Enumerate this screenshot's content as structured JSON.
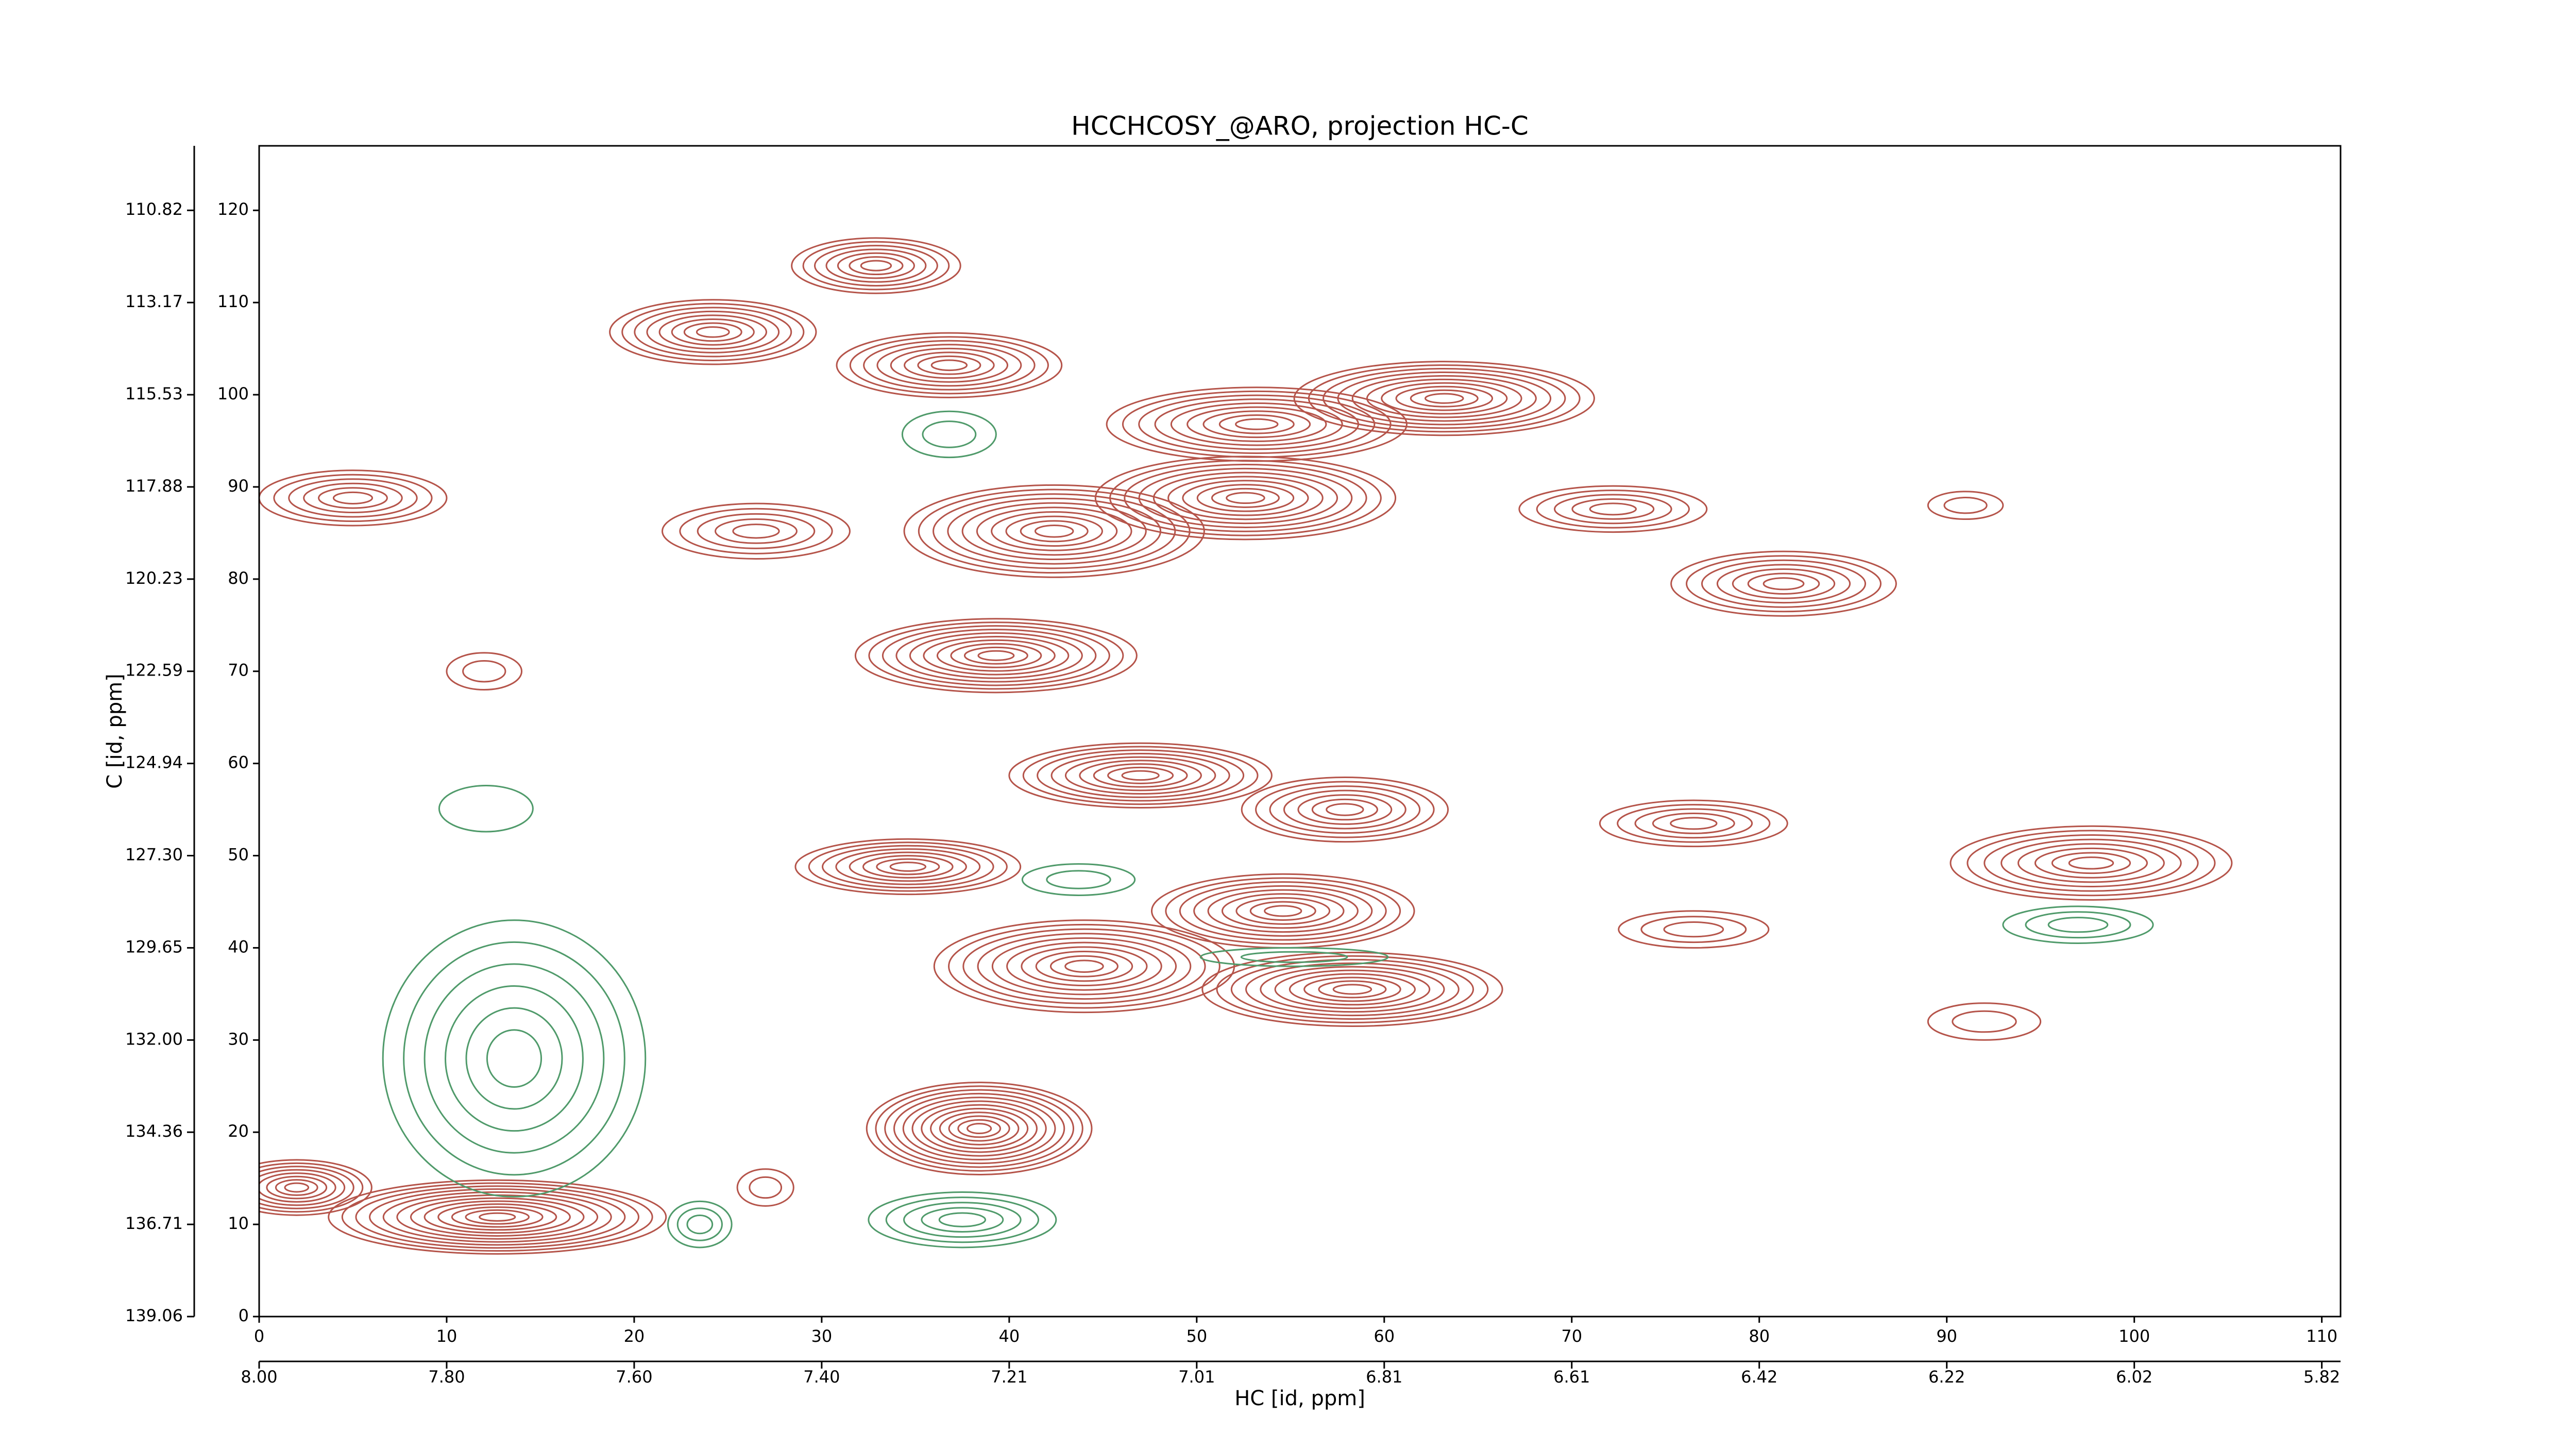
{
  "chart_data": {
    "type": "contour",
    "title": "HCCHCOSY_@ARO, projection HC-C",
    "xlabel": "HC [id, ppm]",
    "ylabel": "C [id, ppm]",
    "xlim": [
      0,
      111
    ],
    "ylim": [
      0,
      127
    ],
    "xticks": [
      0,
      10,
      20,
      30,
      40,
      50,
      60,
      70,
      80,
      90,
      100,
      110
    ],
    "yticks": [
      0,
      10,
      20,
      30,
      40,
      50,
      60,
      70,
      80,
      90,
      100,
      110,
      120
    ],
    "x2ticks": [
      {
        "value": 0,
        "label": "8.00"
      },
      {
        "value": 10,
        "label": "7.80"
      },
      {
        "value": 20,
        "label": "7.60"
      },
      {
        "value": 30,
        "label": "7.40"
      },
      {
        "value": 40,
        "label": "7.21"
      },
      {
        "value": 50,
        "label": "7.01"
      },
      {
        "value": 60,
        "label": "6.81"
      },
      {
        "value": 70,
        "label": "6.61"
      },
      {
        "value": 80,
        "label": "6.42"
      },
      {
        "value": 90,
        "label": "6.22"
      },
      {
        "value": 100,
        "label": "6.02"
      },
      {
        "value": 110,
        "label": "5.82"
      }
    ],
    "y2ticks": [
      {
        "value": 0,
        "label": "139.06"
      },
      {
        "value": 10,
        "label": "136.71"
      },
      {
        "value": 20,
        "label": "134.36"
      },
      {
        "value": 30,
        "label": "132.00"
      },
      {
        "value": 40,
        "label": "129.65"
      },
      {
        "value": 50,
        "label": "127.30"
      },
      {
        "value": 60,
        "label": "124.94"
      },
      {
        "value": 70,
        "label": "122.59"
      },
      {
        "value": 80,
        "label": "120.23"
      },
      {
        "value": 90,
        "label": "117.88"
      },
      {
        "value": 100,
        "label": "115.53"
      },
      {
        "value": 110,
        "label": "113.17"
      },
      {
        "value": 120,
        "label": "110.82"
      }
    ],
    "series": [
      {
        "color": "#b5544a",
        "peaks": [
          {
            "x": 12.7,
            "y": 10.8,
            "wx": 9,
            "wy": 4,
            "levels": 12
          },
          {
            "x": 2,
            "y": 14,
            "wx": 4,
            "wy": 3,
            "levels": 8
          },
          {
            "x": 38.4,
            "y": 20.4,
            "wx": 6,
            "wy": 5,
            "levels": 12
          },
          {
            "x": 34.6,
            "y": 48.8,
            "wx": 6,
            "wy": 3,
            "levels": 8
          },
          {
            "x": 44,
            "y": 38,
            "wx": 8,
            "wy": 5,
            "levels": 10
          },
          {
            "x": 54.6,
            "y": 44,
            "wx": 7,
            "wy": 4,
            "levels": 9
          },
          {
            "x": 58.3,
            "y": 35.5,
            "wx": 8,
            "wy": 4,
            "levels": 10
          },
          {
            "x": 47,
            "y": 58.7,
            "wx": 7,
            "wy": 3.5,
            "levels": 9
          },
          {
            "x": 57.9,
            "y": 55,
            "wx": 5.5,
            "wy": 3.5,
            "levels": 7
          },
          {
            "x": 39.3,
            "y": 71.7,
            "wx": 7.5,
            "wy": 4,
            "levels": 10
          },
          {
            "x": 42.4,
            "y": 85.2,
            "wx": 8,
            "wy": 5,
            "levels": 10
          },
          {
            "x": 52.6,
            "y": 88.8,
            "wx": 8,
            "wy": 4.5,
            "levels": 10
          },
          {
            "x": 53.2,
            "y": 96.8,
            "wx": 8,
            "wy": 4,
            "levels": 9
          },
          {
            "x": 63.2,
            "y": 99.6,
            "wx": 8,
            "wy": 4,
            "levels": 10
          },
          {
            "x": 36.8,
            "y": 103.2,
            "wx": 6,
            "wy": 3.5,
            "levels": 8
          },
          {
            "x": 24.2,
            "y": 106.8,
            "wx": 5.5,
            "wy": 3.5,
            "levels": 8
          },
          {
            "x": 32.9,
            "y": 114,
            "wx": 4.5,
            "wy": 3,
            "levels": 7
          },
          {
            "x": 5,
            "y": 88.8,
            "wx": 5,
            "wy": 3,
            "levels": 6
          },
          {
            "x": 26.5,
            "y": 85.2,
            "wx": 5,
            "wy": 3,
            "levels": 5
          },
          {
            "x": 72.2,
            "y": 87.6,
            "wx": 5,
            "wy": 2.5,
            "levels": 5
          },
          {
            "x": 81.3,
            "y": 79.5,
            "wx": 6,
            "wy": 3.5,
            "levels": 7
          },
          {
            "x": 76.5,
            "y": 53.5,
            "wx": 5,
            "wy": 2.5,
            "levels": 5
          },
          {
            "x": 97.7,
            "y": 49.2,
            "wx": 7.5,
            "wy": 4,
            "levels": 8
          },
          {
            "x": 76.5,
            "y": 42,
            "wx": 4,
            "wy": 2,
            "levels": 3
          },
          {
            "x": 12,
            "y": 70,
            "wx": 2,
            "wy": 2,
            "levels": 2
          },
          {
            "x": 27,
            "y": 14,
            "wx": 1.5,
            "wy": 2,
            "levels": 2
          },
          {
            "x": 91,
            "y": 88,
            "wx": 2,
            "wy": 1.5,
            "levels": 2
          },
          {
            "x": 92,
            "y": 32,
            "wx": 3,
            "wy": 2,
            "levels": 2
          }
        ]
      },
      {
        "color": "#4f9a6a",
        "peaks": [
          {
            "x": 13.6,
            "y": 28,
            "wx": 7,
            "wy": 15,
            "levels": 6
          },
          {
            "x": 37.5,
            "y": 10.5,
            "wx": 5,
            "wy": 3,
            "levels": 5
          },
          {
            "x": 97,
            "y": 42.5,
            "wx": 4,
            "wy": 2,
            "levels": 3
          },
          {
            "x": 36.8,
            "y": 95.7,
            "wx": 2.5,
            "wy": 2.5,
            "levels": 2
          },
          {
            "x": 12.1,
            "y": 55.1,
            "wx": 2.5,
            "wy": 2.5,
            "levels": 1
          },
          {
            "x": 23.5,
            "y": 10,
            "wx": 1.7,
            "wy": 2.5,
            "levels": 3
          },
          {
            "x": 43.7,
            "y": 47.4,
            "wx": 3,
            "wy": 1.7,
            "levels": 2
          },
          {
            "x": 55.2,
            "y": 39,
            "wx": 5,
            "wy": 1,
            "levels": 2
          }
        ]
      }
    ]
  }
}
